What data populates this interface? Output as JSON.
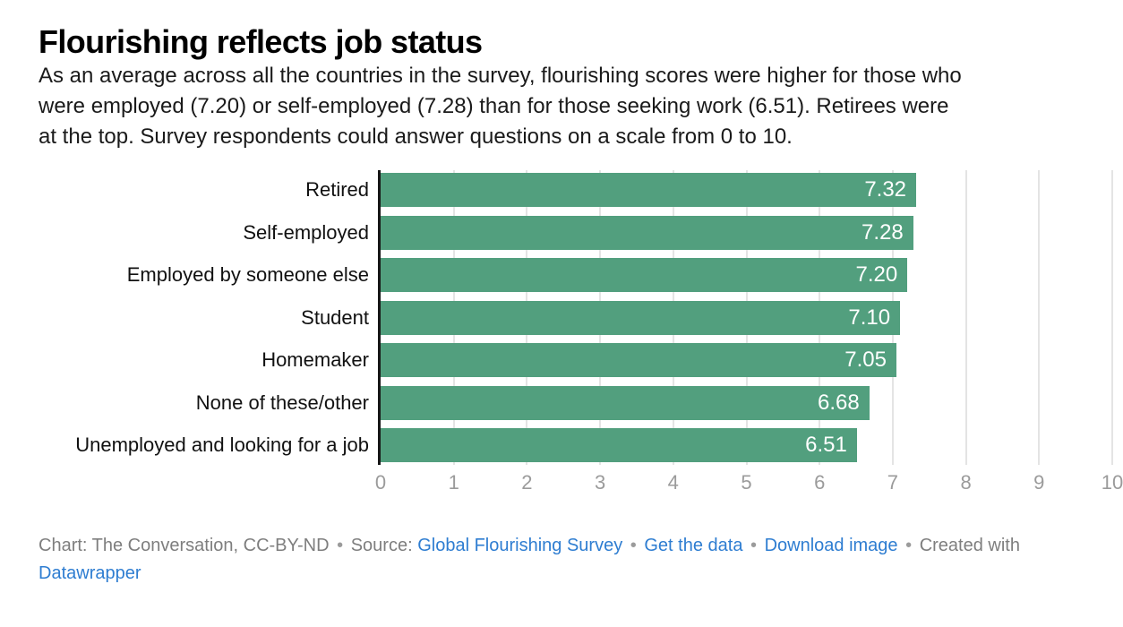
{
  "header": {
    "title": "Flourishing reflects job status",
    "description_lines": [
      "As an average across all the countries in the survey, flourishing scores were higher for those who",
      "were employed (7.20) or self-employed (7.28) than for those seeking work (6.51). Retirees were",
      "at the top. Survey respondents could answer questions on a scale from 0 to 10."
    ]
  },
  "chart_data": {
    "type": "bar",
    "orientation": "horizontal",
    "title": "Flourishing reflects job status",
    "categories": [
      "Retired",
      "Self-employed",
      "Employed by someone else",
      "Student",
      "Homemaker",
      "None of these/other",
      "Unemployed and looking for a job"
    ],
    "values": [
      7.32,
      7.28,
      7.2,
      7.1,
      7.05,
      6.68,
      6.51
    ],
    "value_labels": [
      "7.32",
      "7.28",
      "7.20",
      "7.10",
      "7.05",
      "6.68",
      "6.51"
    ],
    "xlim": [
      0,
      10
    ],
    "x_ticks": [
      "0",
      "1",
      "2",
      "3",
      "4",
      "5",
      "6",
      "7",
      "8",
      "9",
      "10"
    ],
    "grid": true,
    "legend": "none",
    "bar_color": "#529f7e",
    "value_label_color": "#ffffff",
    "gridline_color": "#e4e4e4",
    "axis_line_color": "#161616",
    "tick_label_color": "#9b9b9b"
  },
  "footer": {
    "chart_credit": "Chart: The Conversation, CC-BY-ND",
    "separator": "•",
    "source_label": "Source:",
    "source_link": "Global Flourishing Survey",
    "get_data_link": "Get the data",
    "download_link": "Download image",
    "created_with": "Created with",
    "tool_link": "Datawrapper",
    "link_color": "#2e7dd1"
  }
}
